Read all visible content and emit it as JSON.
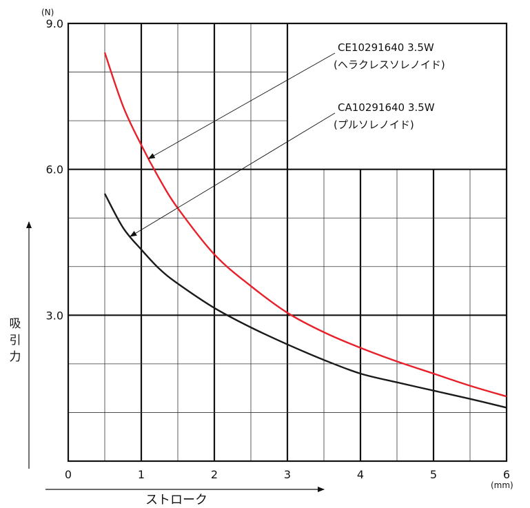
{
  "chart_data": {
    "type": "line",
    "title": "",
    "ylabel": "吸引力",
    "xlabel": "ストローク",
    "y_unit": "(N)",
    "x_unit": "(mm)",
    "xlim": [
      0,
      6
    ],
    "ylim": [
      0,
      9
    ],
    "x_ticks": [
      "0",
      "1",
      "2",
      "3",
      "4",
      "5",
      "6"
    ],
    "y_ticks": [
      {
        "value": 3,
        "label": "3.0"
      },
      {
        "value": 6,
        "label": "6.0"
      },
      {
        "value": 9,
        "label": "9.0"
      }
    ],
    "grid": true,
    "series": [
      {
        "name": "CE10291640 3.5W",
        "subname": "(ヘラクレスソレノイド)",
        "color": "#e8202a",
        "x": [
          0.5,
          0.75,
          1.0,
          1.25,
          1.5,
          2.0,
          2.5,
          3.0,
          3.5,
          4.0,
          4.5,
          5.0,
          5.5,
          6.0
        ],
        "y": [
          8.4,
          7.3,
          6.5,
          5.8,
          5.2,
          4.25,
          3.6,
          3.05,
          2.65,
          2.33,
          2.05,
          1.8,
          1.55,
          1.33
        ]
      },
      {
        "name": "CA10291640 3.5W",
        "subname": "(プルソレノイド)",
        "color": "#1a1a1a",
        "x": [
          0.5,
          0.75,
          1.0,
          1.25,
          1.5,
          2.0,
          2.5,
          3.0,
          3.5,
          4.0,
          4.5,
          5.0,
          5.5,
          6.0
        ],
        "y": [
          5.5,
          4.8,
          4.35,
          3.95,
          3.65,
          3.15,
          2.75,
          2.4,
          2.08,
          1.8,
          1.62,
          1.45,
          1.28,
          1.1
        ]
      }
    ]
  }
}
